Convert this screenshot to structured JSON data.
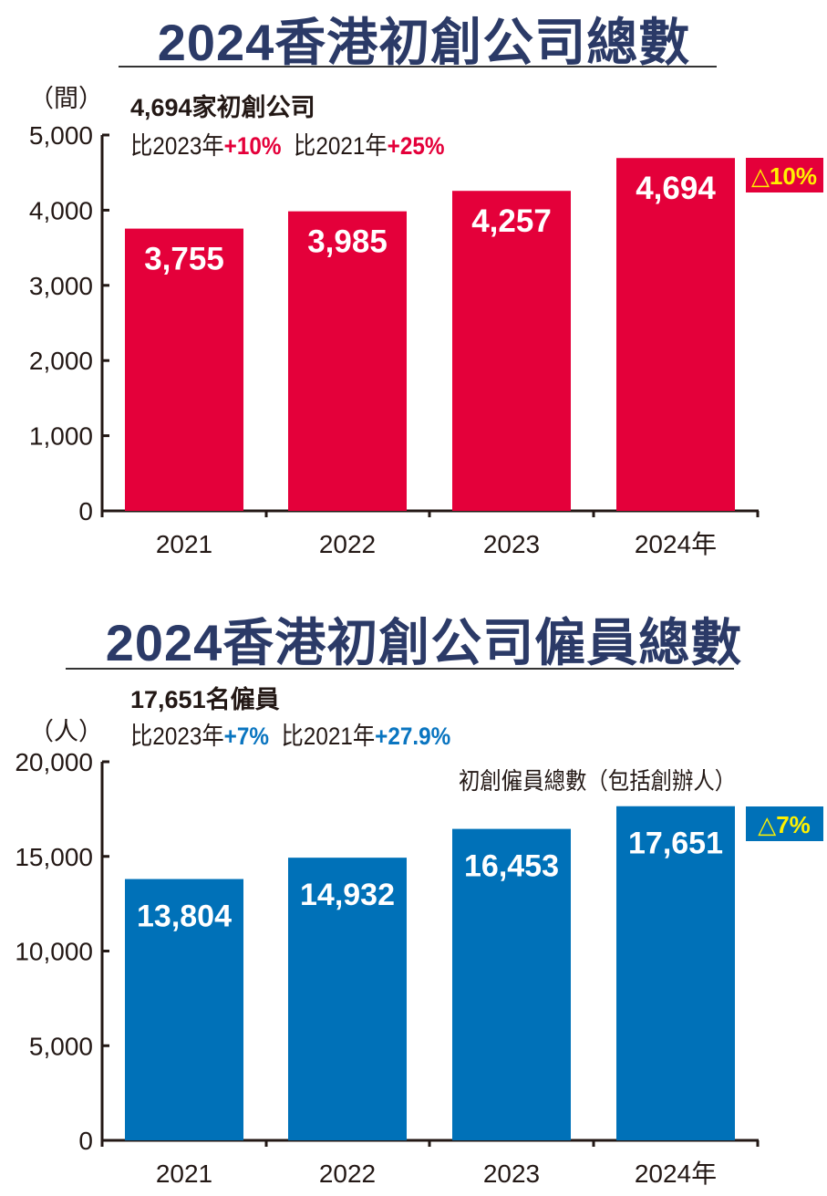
{
  "charts_text": {
    "c1": {
      "title": "2024香港初創公司總數",
      "unit": "（間）",
      "headline": "4,694家初創公司",
      "cmp1_label": "比2023年",
      "cmp1_value": "+10%",
      "cmp2_label": "比2021年",
      "cmp2_value": "+25%"
    },
    "c2": {
      "title": "2024香港初創公司僱員總數",
      "unit": "（人）",
      "headline": "17,651名僱員",
      "cmp1_label": "比2023年",
      "cmp1_value": "+7%",
      "cmp2_label": "比2021年",
      "cmp2_value": "+27.9%",
      "note": "初創僱員總數（包括創辦人）"
    }
  },
  "chart_data": [
    {
      "type": "bar",
      "title": "2024香港初創公司總數",
      "ylabel": "間",
      "categories": [
        "2021",
        "2022",
        "2023",
        "2024年"
      ],
      "values": [
        3755,
        3985,
        4257,
        4694
      ],
      "labels": [
        "3,755",
        "3,985",
        "4,257",
        "4,694"
      ],
      "ylim": [
        0,
        5000
      ],
      "yticks": [
        0,
        1000,
        2000,
        3000,
        4000,
        5000
      ],
      "ytick_labels": [
        "0",
        "1,000",
        "2,000",
        "3,000",
        "4,000",
        "5,000"
      ],
      "badge": "△10%",
      "color": "#e4003a"
    },
    {
      "type": "bar",
      "title": "2024香港初創公司僱員總數",
      "ylabel": "人",
      "categories": [
        "2021",
        "2022",
        "2023",
        "2024年"
      ],
      "values": [
        13804,
        14932,
        16453,
        17651
      ],
      "labels": [
        "13,804",
        "14,932",
        "16,453",
        "17,651"
      ],
      "ylim": [
        0,
        20000
      ],
      "yticks": [
        0,
        5000,
        10000,
        15000,
        20000
      ],
      "ytick_labels": [
        "0",
        "5,000",
        "10,000",
        "15,000",
        "20,000"
      ],
      "badge": "△7%",
      "color": "#0071b8"
    }
  ]
}
